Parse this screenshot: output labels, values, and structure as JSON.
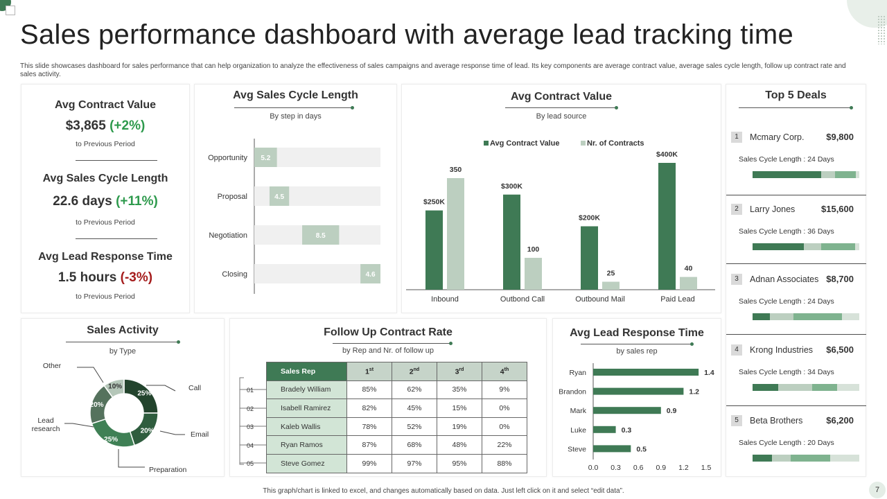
{
  "title": "Sales performance dashboard with average lead tracking time",
  "subtitle": "This slide showcases dashboard for sales performance that can help organization to analyze the effectiveness of sales campaigns and average response time of lead.  Its key components are average contract value, average sales cycle length, follow up contract rate and sales activity.",
  "colors": {
    "dark": "#3f7a55",
    "light": "#bccfc0",
    "track": "#f0f0f0",
    "darkest": "#23442d"
  },
  "kpis": [
    {
      "title": "Avg Contract Value",
      "value": "$3,865",
      "change": "(+2%)",
      "note": "to Previous Period"
    },
    {
      "title": "Avg Sales Cycle Length",
      "value": "22.6 days",
      "change": "(+11%)",
      "note": "to Previous Period"
    },
    {
      "title": "Avg Lead Response Time",
      "value": "1.5 hours",
      "change": "(-3%)",
      "note": "to Previous Period"
    }
  ],
  "cycle": {
    "title": "Avg Sales Cycle Length",
    "subtitle": "By step in days"
  },
  "contract": {
    "title": "Avg Contract Value",
    "subtitle": "By lead source"
  },
  "activity": {
    "title": "Sales Activity",
    "subtitle": "by Type"
  },
  "followup": {
    "title": "Follow Up Contract Rate",
    "subtitle": "by Rep and Nr. of follow  up",
    "header_rep": "Sales Rep",
    "headers": [
      {
        "num": "1",
        "sup": "st"
      },
      {
        "num": "2",
        "sup": "nd"
      },
      {
        "num": "3",
        "sup": "rd"
      },
      {
        "num": "4",
        "sup": "th"
      }
    ],
    "rows": [
      {
        "idx": "01",
        "rep": "Bradely William",
        "vals": [
          "85%",
          "62%",
          "35%",
          "9%"
        ]
      },
      {
        "idx": "02",
        "rep": "Isabell Ramirez",
        "vals": [
          "82%",
          "45%",
          "15%",
          "0%"
        ]
      },
      {
        "idx": "03",
        "rep": "Kaleb Wallis",
        "vals": [
          "78%",
          "52%",
          "19%",
          "0%"
        ]
      },
      {
        "idx": "04",
        "rep": "Ryan Ramos",
        "vals": [
          "87%",
          "68%",
          "48%",
          "22%"
        ]
      },
      {
        "idx": "05",
        "rep": "Steve Gomez",
        "vals": [
          "99%",
          "97%",
          "95%",
          "88%"
        ]
      }
    ]
  },
  "response": {
    "title": "Avg Lead Response Time",
    "subtitle": "by sales rep"
  },
  "deals": {
    "title": "Top 5 Deals",
    "items": [
      {
        "num": "1",
        "name": "Mcmary Corp.",
        "value": "$9,800",
        "cycle": "Sales Cycle Length : 24 Days",
        "bar": [
          0.64,
          0.13,
          0.2,
          0.03
        ]
      },
      {
        "num": "2",
        "name": "Larry Jones",
        "value": "$15,600",
        "cycle": "Sales Cycle Length : 36 Days",
        "bar": [
          0.48,
          0.16,
          0.32,
          0.04
        ]
      },
      {
        "num": "3",
        "name": "Adnan Associates",
        "value": "$8,700",
        "cycle": "Sales Cycle Length : 24 Days",
        "bar": [
          0.16,
          0.22,
          0.46,
          0.16
        ]
      },
      {
        "num": "4",
        "name": "Krong Industries",
        "value": "$6,500",
        "cycle": "Sales Cycle Length : 34 Days",
        "bar": [
          0.24,
          0.32,
          0.23,
          0.21
        ]
      },
      {
        "num": "5",
        "name": "Beta Brothers",
        "value": "$6,200",
        "cycle": "Sales Cycle Length : 20 Days",
        "bar": [
          0.18,
          0.18,
          0.37,
          0.27
        ]
      }
    ]
  },
  "footer": "This graph/chart is linked to excel, and changes automatically based on data. Just left click on it and select “edit data”.",
  "page_number": "7",
  "chart_data": [
    {
      "type": "bar",
      "title": "Avg Sales Cycle Length",
      "subtitle": "By step in days",
      "orientation": "horizontal-floating",
      "categories": [
        "Opportunity",
        "Proposal",
        "Negotiation",
        "Closing"
      ],
      "start": [
        0,
        3.5,
        11.0,
        24.4
      ],
      "values": [
        5.2,
        4.5,
        8.5,
        4.6
      ],
      "labels": [
        "5.2",
        "4.5",
        "8.5",
        "4.6"
      ],
      "xlim": [
        0,
        29
      ]
    },
    {
      "type": "bar",
      "title": "Avg Contract Value",
      "subtitle": "By lead source",
      "categories": [
        "Inbound",
        "Outbond Call",
        "Outbound Mail",
        "Paid Lead"
      ],
      "series": [
        {
          "name": "Avg Contract Value",
          "values": [
            250,
            300,
            200,
            400
          ],
          "labels": [
            "$250K",
            "$300K",
            "$200K",
            "$400K"
          ]
        },
        {
          "name": "Nr. of Contracts",
          "values": [
            350,
            100,
            25,
            40
          ],
          "labels": [
            "350",
            "100",
            "25",
            "40"
          ]
        }
      ]
    },
    {
      "type": "pie",
      "title": "Sales Activity",
      "subtitle": "by Type",
      "labels": [
        "Call",
        "Email",
        "Preparation",
        "Lead research",
        "Other"
      ],
      "values": [
        25,
        20,
        25,
        20,
        10
      ],
      "value_labels": [
        "25%",
        "20%",
        "25%",
        "20%",
        "10%"
      ],
      "slice_colors": [
        "#23442d",
        "#2f5d3e",
        "#3f8055",
        "#55725d",
        "#b5c7b9"
      ]
    },
    {
      "type": "bar",
      "title": "Avg Lead Response Time",
      "subtitle": "by sales rep",
      "orientation": "horizontal",
      "categories": [
        "Ryan",
        "Brandon",
        "Mark",
        "Luke",
        "Steve"
      ],
      "values": [
        1.4,
        1.2,
        0.9,
        0.3,
        0.5
      ],
      "labels": [
        "1.4",
        "1.2",
        "0.9",
        "0.3",
        "0.5"
      ],
      "xlim": [
        0,
        1.5
      ],
      "xticks": [
        "0.0",
        "0.3",
        "0.6",
        "0.9",
        "1.2",
        "1.5"
      ]
    }
  ]
}
